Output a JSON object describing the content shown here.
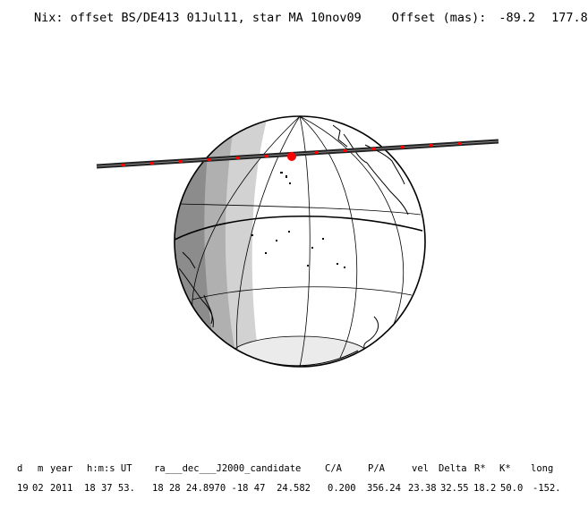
{
  "header": {
    "title": "Nix: offset BS/DE413 01Jul11, star MA 10nov09",
    "offset_label": "Offset (mas):",
    "offset_x": "-89.2",
    "offset_y": "177.8"
  },
  "table": {
    "headers": [
      "d",
      "m",
      "year",
      "h:m:s UT",
      "ra___dec___J2000_candidate",
      "C/A",
      "P/A",
      "vel",
      "Delta",
      "R*",
      "K*",
      "long"
    ],
    "values": [
      "19",
      "02",
      "2011",
      "18 37 53.",
      "18 28 24.8970 -18 47  24.582",
      "0.200",
      "356.24",
      "23.38",
      "32.55",
      "18.2",
      "50.0",
      "-152."
    ]
  },
  "colors": {
    "night": "#8c8c8c",
    "twilight": "#c8c8c8",
    "track": "#222222",
    "event": "#ff0000"
  }
}
